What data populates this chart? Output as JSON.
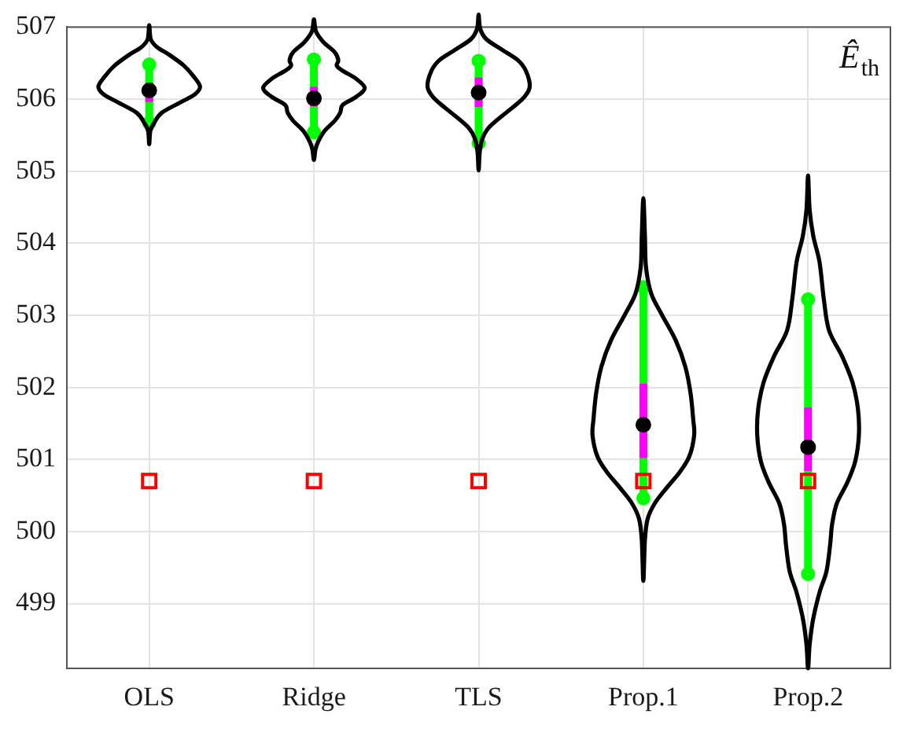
{
  "chart_data": {
    "type": "box",
    "title": "Ê$_{th}$",
    "categories": [
      "OLS",
      "Ridge",
      "TLS",
      "Prop.1",
      "Prop.2"
    ],
    "ylim": [
      498.1,
      507
    ],
    "yticks": [
      499,
      500,
      501,
      502,
      503,
      504,
      505,
      506,
      507
    ],
    "grid": true,
    "series": [
      {
        "color": "#00ff00",
        "colors": [
          "#ff00ff",
          "#ff00ff",
          "#ff00ff",
          "#ff00ff",
          "#ff00ff"
        ],
        "boxes": [
          {
            "low": 505.67,
            "q1": 505.96,
            "median": 506.12,
            "q3": 506.23,
            "high": 506.48
          },
          {
            "low": 505.54,
            "q1": 505.9,
            "median": 506.01,
            "q3": 506.17,
            "high": 506.55
          },
          {
            "low": 505.39,
            "q1": 505.89,
            "median": 506.09,
            "q3": 506.3,
            "high": 506.53
          },
          {
            "low": 500.46,
            "q1": 501.02,
            "median": 501.48,
            "q3": 502.05,
            "high": 503.39
          },
          {
            "low": 499.41,
            "q1": 500.84,
            "median": 501.17,
            "q3": 501.72,
            "high": 503.22
          }
        ]
      },
      {
        "type": "scatter",
        "color": "#ff0000",
        "marker": "square",
        "x": [
          "OLS",
          "Ridge",
          "TLS",
          "Prop.1",
          "Prop.2"
        ],
        "values": [
          500.7,
          500.7,
          500.7,
          500.7,
          500.7
        ]
      }
    ]
  }
}
